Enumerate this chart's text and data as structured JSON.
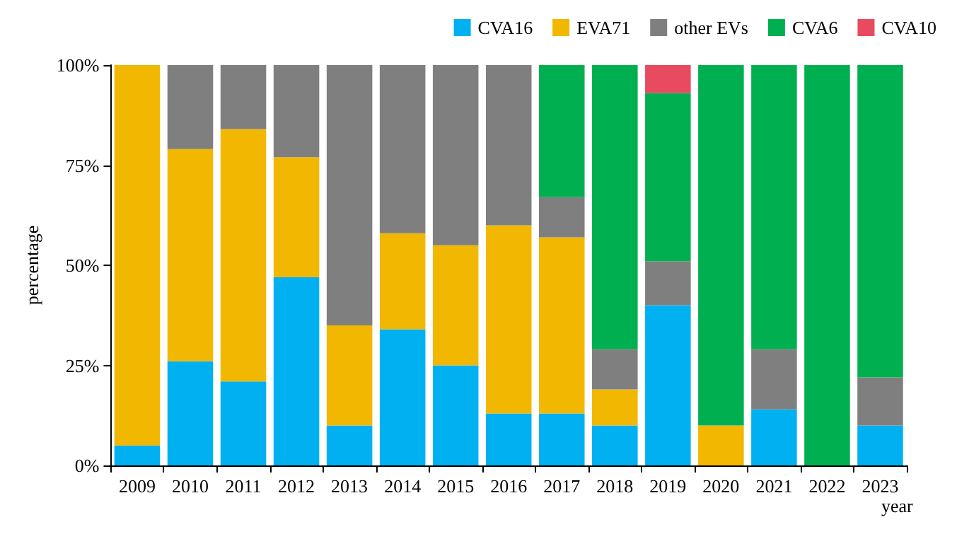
{
  "chart_data": {
    "type": "bar",
    "stacked": true,
    "xlabel": "year",
    "ylabel": "percentage",
    "categories": [
      "2009",
      "2010",
      "2011",
      "2012",
      "2013",
      "2014",
      "2015",
      "2016",
      "2017",
      "2018",
      "2019",
      "2020",
      "2021",
      "2022",
      "2023"
    ],
    "series": [
      {
        "name": "CVA16",
        "color": "#00b0f0",
        "values": [
          5,
          26,
          21,
          47,
          10,
          34,
          25,
          13,
          13,
          10,
          40,
          0,
          14,
          0,
          10
        ]
      },
      {
        "name": "EVA71",
        "color": "#f2b700",
        "values": [
          95,
          53,
          63,
          30,
          25,
          24,
          30,
          47,
          44,
          9,
          0,
          10,
          0,
          0,
          0
        ]
      },
      {
        "name": "other EVs",
        "color": "#7f7f7f",
        "values": [
          0,
          21,
          16,
          23,
          65,
          42,
          45,
          40,
          10,
          10,
          11,
          0,
          15,
          0,
          12
        ]
      },
      {
        "name": "CVA6",
        "color": "#00b050",
        "values": [
          0,
          0,
          0,
          0,
          0,
          0,
          0,
          0,
          33,
          71,
          42,
          90,
          71,
          100,
          78
        ]
      },
      {
        "name": "CVA10",
        "color": "#e84a5f",
        "values": [
          0,
          0,
          0,
          0,
          0,
          0,
          0,
          0,
          0,
          0,
          7,
          0,
          0,
          0,
          0
        ]
      }
    ],
    "ylim": [
      0,
      100
    ],
    "yticks": [
      {
        "value": 0,
        "label": "0%"
      },
      {
        "value": 25,
        "label": "25%"
      },
      {
        "value": 50,
        "label": "50%"
      },
      {
        "value": 75,
        "label": "75%"
      },
      {
        "value": 100,
        "label": "100%"
      }
    ],
    "grid": false,
    "legend": "top right"
  }
}
